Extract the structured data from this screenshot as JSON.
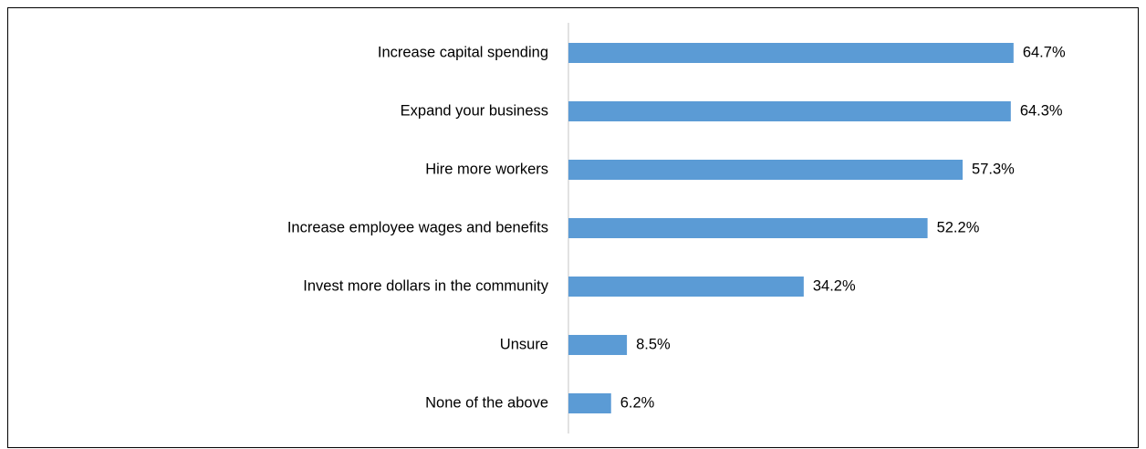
{
  "chart_data": {
    "type": "bar",
    "orientation": "horizontal",
    "categories": [
      "Increase capital spending",
      "Expand your business",
      "Hire more workers",
      "Increase employee wages and benefits",
      "Invest more dollars in the community",
      "Unsure",
      "None of the above"
    ],
    "values": [
      64.7,
      64.3,
      57.3,
      52.2,
      34.2,
      8.5,
      6.2
    ],
    "value_labels": [
      "64.7%",
      "64.3%",
      "57.3%",
      "52.2%",
      "34.2%",
      "8.5%",
      "6.2%"
    ],
    "color": "#5b9bd5"
  }
}
